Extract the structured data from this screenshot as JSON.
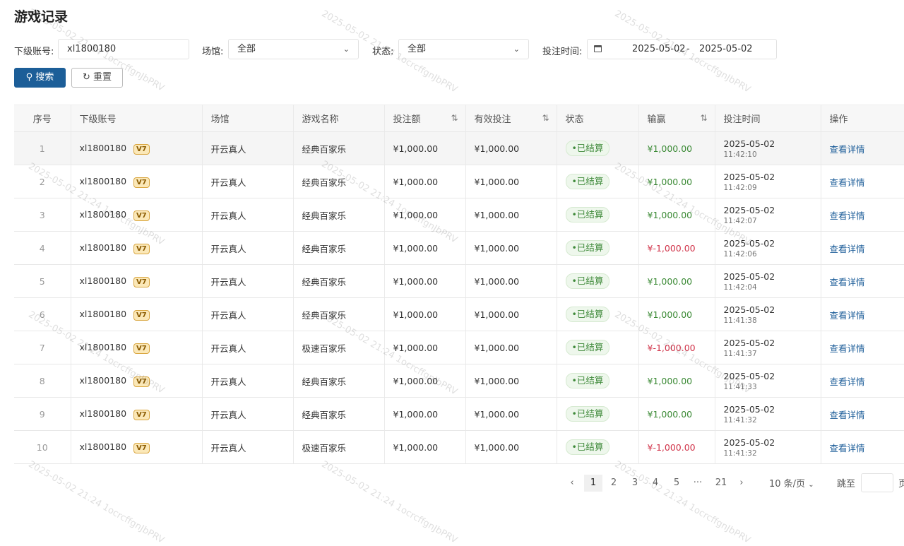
{
  "title": "游戏记录",
  "filters": {
    "account_label": "下级账号:",
    "account_value": "xl1800180",
    "venue_label": "场馆:",
    "venue_value": "全部",
    "status_label": "状态:",
    "status_value": "全部",
    "time_label": "投注时间:",
    "date_start": "2025-05-02",
    "date_sep": "-",
    "date_end": "2025-05-02"
  },
  "buttons": {
    "search": "搜索",
    "reset": "重置"
  },
  "columns": [
    "序号",
    "下级账号",
    "场馆",
    "游戏名称",
    "投注额",
    "有效投注",
    "状态",
    "输赢",
    "投注时间",
    "操作"
  ],
  "rows": [
    {
      "no": "1",
      "account": "xl1800180",
      "level": "V7",
      "venue": "开云真人",
      "game": "经典百家乐",
      "bet": "¥1,000.00",
      "valid": "¥1,000.00",
      "status": "•已结算",
      "win": "¥1,000.00",
      "date": "2025-05-02",
      "time": "11:42:10",
      "action": "查看详情"
    },
    {
      "no": "2",
      "account": "xl1800180",
      "level": "V7",
      "venue": "开云真人",
      "game": "经典百家乐",
      "bet": "¥1,000.00",
      "valid": "¥1,000.00",
      "status": "•已结算",
      "win": "¥1,000.00",
      "date": "2025-05-02",
      "time": "11:42:09",
      "action": "查看详情"
    },
    {
      "no": "3",
      "account": "xl1800180",
      "level": "V7",
      "venue": "开云真人",
      "game": "经典百家乐",
      "bet": "¥1,000.00",
      "valid": "¥1,000.00",
      "status": "•已结算",
      "win": "¥1,000.00",
      "date": "2025-05-02",
      "time": "11:42:07",
      "action": "查看详情"
    },
    {
      "no": "4",
      "account": "xl1800180",
      "level": "V7",
      "venue": "开云真人",
      "game": "经典百家乐",
      "bet": "¥1,000.00",
      "valid": "¥1,000.00",
      "status": "•已结算",
      "win": "¥-1,000.00",
      "date": "2025-05-02",
      "time": "11:42:06",
      "action": "查看详情"
    },
    {
      "no": "5",
      "account": "xl1800180",
      "level": "V7",
      "venue": "开云真人",
      "game": "经典百家乐",
      "bet": "¥1,000.00",
      "valid": "¥1,000.00",
      "status": "•已结算",
      "win": "¥1,000.00",
      "date": "2025-05-02",
      "time": "11:42:04",
      "action": "查看详情"
    },
    {
      "no": "6",
      "account": "xl1800180",
      "level": "V7",
      "venue": "开云真人",
      "game": "经典百家乐",
      "bet": "¥1,000.00",
      "valid": "¥1,000.00",
      "status": "•已结算",
      "win": "¥1,000.00",
      "date": "2025-05-02",
      "time": "11:41:38",
      "action": "查看详情"
    },
    {
      "no": "7",
      "account": "xl1800180",
      "level": "V7",
      "venue": "开云真人",
      "game": "极速百家乐",
      "bet": "¥1,000.00",
      "valid": "¥1,000.00",
      "status": "•已结算",
      "win": "¥-1,000.00",
      "date": "2025-05-02",
      "time": "11:41:37",
      "action": "查看详情"
    },
    {
      "no": "8",
      "account": "xl1800180",
      "level": "V7",
      "venue": "开云真人",
      "game": "经典百家乐",
      "bet": "¥1,000.00",
      "valid": "¥1,000.00",
      "status": "•已结算",
      "win": "¥1,000.00",
      "date": "2025-05-02",
      "time": "11:41:33",
      "action": "查看详情"
    },
    {
      "no": "9",
      "account": "xl1800180",
      "level": "V7",
      "venue": "开云真人",
      "game": "经典百家乐",
      "bet": "¥1,000.00",
      "valid": "¥1,000.00",
      "status": "•已结算",
      "win": "¥1,000.00",
      "date": "2025-05-02",
      "time": "11:41:32",
      "action": "查看详情"
    },
    {
      "no": "10",
      "account": "xl1800180",
      "level": "V7",
      "venue": "开云真人",
      "game": "极速百家乐",
      "bet": "¥1,000.00",
      "valid": "¥1,000.00",
      "status": "•已结算",
      "win": "¥-1,000.00",
      "date": "2025-05-02",
      "time": "11:41:32",
      "action": "查看详情"
    }
  ],
  "pagination": {
    "prev": "‹",
    "pages": [
      "1",
      "2",
      "3",
      "4",
      "5",
      "···",
      "21"
    ],
    "current": "1",
    "next": "›",
    "page_size": "10 条/页",
    "jump_label": "跳至",
    "page_suffix": "页"
  },
  "watermark": "2025-05-02 21:24 1ocrcffgnJbPRV",
  "colors": {
    "primary": "#1c5e98",
    "positive": "#3b8a35",
    "negative": "#d1344a",
    "link": "#1f5f9a"
  }
}
